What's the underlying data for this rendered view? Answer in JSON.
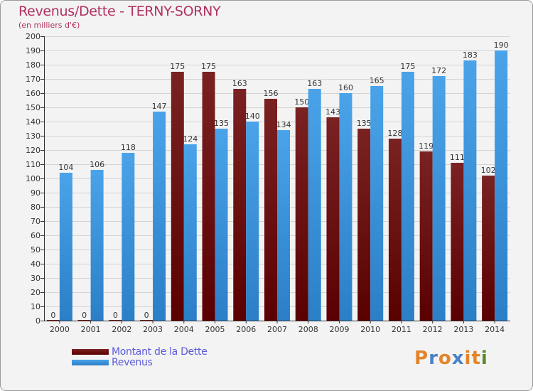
{
  "title": "Revenus/Dette - TERNY-SORNY",
  "subtitle": "(en milliers d'€)",
  "legend": {
    "debt_label": "Montant de la Dette",
    "revenue_label": "Revenus"
  },
  "logo": {
    "text": "Proxiti",
    "letter_colors": [
      "#e2852a",
      "#4a82c6",
      "#e2852a",
      "#4a82c6",
      "#e2852a",
      "#e2852a",
      "#5a8a2a"
    ]
  },
  "colors": {
    "debt": "#7a2222",
    "debt_dark": "#5a0000",
    "revenue": "#4aa3e8",
    "revenue_dark": "#2b7fc6",
    "title": "#b03060",
    "legend_text": "#5a5ad8"
  },
  "chart_data": {
    "type": "bar",
    "title": "Revenus/Dette - TERNY-SORNY",
    "ylabel": "(en milliers d'€)",
    "xlabel": "",
    "ylim": [
      0,
      200
    ],
    "ytick_step": 10,
    "grid": true,
    "legend_position": "bottom-left",
    "categories": [
      "2000",
      "2001",
      "2002",
      "2003",
      "2004",
      "2005",
      "2006",
      "2007",
      "2008",
      "2009",
      "2010",
      "2011",
      "2012",
      "2013",
      "2014"
    ],
    "series": [
      {
        "name": "Montant de la Dette",
        "values": [
          0,
          0,
          0,
          0,
          175,
          175,
          163,
          156,
          150,
          143,
          135,
          128,
          119,
          111,
          102
        ]
      },
      {
        "name": "Revenus",
        "values": [
          104,
          106,
          118,
          147,
          124,
          135,
          140,
          134,
          163,
          160,
          165,
          175,
          172,
          183,
          190
        ]
      }
    ]
  }
}
